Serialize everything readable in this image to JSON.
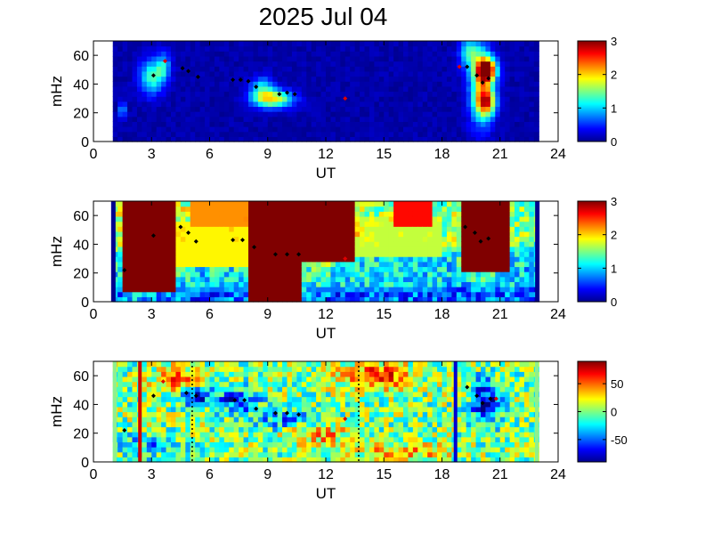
{
  "title": "2025 Jul 04",
  "chart_data": [
    {
      "type": "heatmap",
      "xlabel": "UT",
      "ylabel": "mHz",
      "xlim": [
        0,
        24
      ],
      "ylim": [
        0,
        70
      ],
      "xticks": [
        0,
        3,
        6,
        9,
        12,
        15,
        18,
        21,
        24
      ],
      "yticks": [
        0,
        20,
        40,
        60
      ],
      "data_range_ut": [
        1,
        23
      ],
      "colorbar": {
        "min": 0,
        "max": 3,
        "ticks": [
          0,
          1,
          2,
          3
        ],
        "colormap": "jet"
      },
      "background_level": 0.05,
      "features": [
        {
          "ut": 1.5,
          "mhz": 22,
          "ut_width": 0.15,
          "mhz_width": 6,
          "level": 1.1
        },
        {
          "ut": 3.0,
          "mhz": 45,
          "ut_width": 0.6,
          "mhz_width": 12,
          "level": 1.2
        },
        {
          "ut": 3.6,
          "mhz": 52,
          "ut_width": 0.4,
          "mhz_width": 10,
          "level": 0.9
        },
        {
          "ut": 9.3,
          "mhz": 30,
          "ut_width": 1.0,
          "mhz_width": 6,
          "level": 1.8
        },
        {
          "ut": 8.7,
          "mhz": 37,
          "ut_width": 0.6,
          "mhz_width": 8,
          "level": 1.0
        },
        {
          "ut": 20.0,
          "mhz": 40,
          "ut_width": 0.6,
          "mhz_width": 28,
          "level": 1.4
        },
        {
          "ut": 20.3,
          "mhz": 28,
          "ut_width": 0.5,
          "mhz_width": 10,
          "level": 2.0
        },
        {
          "ut": 20.3,
          "mhz": 50,
          "ut_width": 0.5,
          "mhz_width": 8,
          "level": 3.0
        },
        {
          "ut": 19.4,
          "mhz": 62,
          "ut_width": 0.5,
          "mhz_width": 10,
          "level": 1.0
        }
      ],
      "markers_black": [
        {
          "ut": 3.1,
          "mhz": 46
        },
        {
          "ut": 4.6,
          "mhz": 51
        },
        {
          "ut": 4.9,
          "mhz": 49
        },
        {
          "ut": 5.4,
          "mhz": 45
        },
        {
          "ut": 7.2,
          "mhz": 43
        },
        {
          "ut": 7.6,
          "mhz": 43
        },
        {
          "ut": 8.0,
          "mhz": 42
        },
        {
          "ut": 8.4,
          "mhz": 38
        },
        {
          "ut": 9.6,
          "mhz": 33
        },
        {
          "ut": 10.0,
          "mhz": 34
        },
        {
          "ut": 10.4,
          "mhz": 33
        },
        {
          "ut": 19.3,
          "mhz": 52
        },
        {
          "ut": 19.8,
          "mhz": 46
        },
        {
          "ut": 20.1,
          "mhz": 41
        },
        {
          "ut": 20.4,
          "mhz": 44
        }
      ],
      "markers_red": [
        {
          "ut": 3.7,
          "mhz": 56
        },
        {
          "ut": 13.0,
          "mhz": 30
        },
        {
          "ut": 18.9,
          "mhz": 52
        }
      ]
    },
    {
      "type": "heatmap",
      "xlabel": "UT",
      "ylabel": "mHz",
      "xlim": [
        0,
        24
      ],
      "ylim": [
        0,
        70
      ],
      "xticks": [
        0,
        3,
        6,
        9,
        12,
        15,
        18,
        21,
        24
      ],
      "yticks": [
        0,
        20,
        40,
        60
      ],
      "data_range_ut": [
        1,
        23
      ],
      "colorbar": {
        "min": 0,
        "max": 3,
        "ticks": [
          0,
          1,
          2,
          3
        ],
        "colormap": "jet"
      },
      "background_level": 1.0,
      "boundary_bars_ut": [
        1.05,
        22.95
      ],
      "features": [
        {
          "ut": 2.8,
          "mhz": 48,
          "ut_width": 1.4,
          "mhz_width": 40,
          "level": 3.0
        },
        {
          "ut": 9.3,
          "mhz": 45,
          "ut_width": 1.4,
          "mhz_width": 45,
          "level": 3.0
        },
        {
          "ut": 12.0,
          "mhz": 55,
          "ut_width": 1.6,
          "mhz_width": 28,
          "level": 3.0
        },
        {
          "ut": 20.2,
          "mhz": 52,
          "ut_width": 1.2,
          "mhz_width": 30,
          "level": 3.0
        },
        {
          "ut": 16.5,
          "mhz": 62,
          "ut_width": 1.0,
          "mhz_width": 8,
          "level": 2.6
        },
        {
          "ut": 7.0,
          "mhz": 62,
          "ut_width": 2.0,
          "mhz_width": 10,
          "level": 2.2
        },
        {
          "ut": 5.5,
          "mhz": 40,
          "ut_width": 3.0,
          "mhz_width": 15,
          "level": 1.9
        },
        {
          "ut": 15.0,
          "mhz": 45,
          "ut_width": 3.0,
          "mhz_width": 15,
          "level": 1.7
        },
        {
          "ut": 10.0,
          "mhz": 12,
          "ut_width": 8.0,
          "mhz_width": 6,
          "level": 0.7
        }
      ],
      "markers_black": [
        {
          "ut": 1.6,
          "mhz": 22
        },
        {
          "ut": 3.1,
          "mhz": 46
        },
        {
          "ut": 4.5,
          "mhz": 52
        },
        {
          "ut": 4.9,
          "mhz": 48
        },
        {
          "ut": 5.3,
          "mhz": 42
        },
        {
          "ut": 7.2,
          "mhz": 43
        },
        {
          "ut": 7.7,
          "mhz": 43
        },
        {
          "ut": 8.3,
          "mhz": 38
        },
        {
          "ut": 9.4,
          "mhz": 33
        },
        {
          "ut": 10.0,
          "mhz": 33
        },
        {
          "ut": 10.6,
          "mhz": 33
        },
        {
          "ut": 19.2,
          "mhz": 52
        },
        {
          "ut": 19.7,
          "mhz": 48
        },
        {
          "ut": 20.0,
          "mhz": 42
        },
        {
          "ut": 20.4,
          "mhz": 44
        }
      ],
      "markers_red": [
        {
          "ut": 13.0,
          "mhz": 30
        }
      ]
    },
    {
      "type": "heatmap",
      "xlabel": "UT",
      "ylabel": "mHz",
      "xlim": [
        0,
        24
      ],
      "ylim": [
        0,
        70
      ],
      "xticks": [
        0,
        3,
        6,
        9,
        12,
        15,
        18,
        21,
        24
      ],
      "yticks": [
        0,
        20,
        40,
        60
      ],
      "data_range_ut": [
        1,
        23
      ],
      "colorbar": {
        "min": -90,
        "max": 90,
        "ticks": [
          -50,
          0,
          50
        ],
        "colormap": "jet"
      },
      "background_level": 0,
      "vertical_lines": [
        {
          "ut": 2.4,
          "color": "#d00000",
          "style": "solid"
        },
        {
          "ut": 18.7,
          "color": "#0000d0",
          "style": "solid"
        },
        {
          "ut": 5.1,
          "color": "#000000",
          "style": "dotted"
        },
        {
          "ut": 13.7,
          "color": "#000000",
          "style": "dotted"
        }
      ],
      "features": [
        {
          "ut": 4.5,
          "mhz": 58,
          "ut_width": 1.2,
          "mhz_width": 8,
          "level": 55
        },
        {
          "ut": 14.5,
          "mhz": 60,
          "ut_width": 1.8,
          "mhz_width": 8,
          "level": 65
        },
        {
          "ut": 7.5,
          "mhz": 43,
          "ut_width": 1.0,
          "mhz_width": 8,
          "level": -70
        },
        {
          "ut": 5.3,
          "mhz": 46,
          "ut_width": 0.8,
          "mhz_width": 8,
          "level": -65
        },
        {
          "ut": 20.3,
          "mhz": 42,
          "ut_width": 0.8,
          "mhz_width": 16,
          "level": -75
        },
        {
          "ut": 10.0,
          "mhz": 30,
          "ut_width": 2.0,
          "mhz_width": 8,
          "level": -40
        },
        {
          "ut": 11.5,
          "mhz": 20,
          "ut_width": 1.6,
          "mhz_width": 8,
          "level": 40
        },
        {
          "ut": 16.0,
          "mhz": 8,
          "ut_width": 2.5,
          "mhz_width": 6,
          "level": 35
        },
        {
          "ut": 3.0,
          "mhz": 12,
          "ut_width": 1.5,
          "mhz_width": 8,
          "level": -35
        }
      ],
      "markers_black": [
        {
          "ut": 1.6,
          "mhz": 22
        },
        {
          "ut": 3.1,
          "mhz": 46
        },
        {
          "ut": 4.8,
          "mhz": 48
        },
        {
          "ut": 5.3,
          "mhz": 46
        },
        {
          "ut": 7.3,
          "mhz": 43
        },
        {
          "ut": 7.8,
          "mhz": 43
        },
        {
          "ut": 8.4,
          "mhz": 37
        },
        {
          "ut": 9.4,
          "mhz": 34
        },
        {
          "ut": 10.0,
          "mhz": 34
        },
        {
          "ut": 10.6,
          "mhz": 33
        },
        {
          "ut": 19.3,
          "mhz": 52
        },
        {
          "ut": 19.8,
          "mhz": 46
        },
        {
          "ut": 20.1,
          "mhz": 41
        },
        {
          "ut": 20.5,
          "mhz": 44
        }
      ],
      "markers_red": [
        {
          "ut": 3.6,
          "mhz": 56
        },
        {
          "ut": 13.0,
          "mhz": 30
        },
        {
          "ut": 20.8,
          "mhz": 44
        }
      ]
    }
  ]
}
